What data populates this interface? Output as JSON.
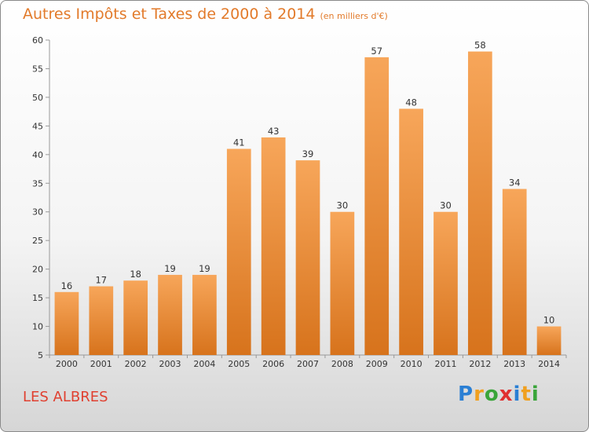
{
  "header": {
    "title": "Autres Impôts et Taxes de 2000 à 2014",
    "unit": "(en milliers d'€)"
  },
  "footer": {
    "commune": "LES ALBRES"
  },
  "logo": {
    "text": "Proxiti",
    "letters": [
      {
        "char": "P",
        "color": "#2a7fd4"
      },
      {
        "char": "r",
        "color": "#f0a020"
      },
      {
        "char": "o",
        "color": "#3aa53a"
      },
      {
        "char": "x",
        "color": "#e03030"
      },
      {
        "char": "i",
        "color": "#2a7fd4"
      },
      {
        "char": "t",
        "color": "#f0a020"
      },
      {
        "char": "i",
        "color": "#3aa53a"
      }
    ]
  },
  "chart_data": {
    "type": "bar",
    "title": "Autres Impôts et Taxes de 2000 à 2014",
    "subtitle": "(en milliers d'€)",
    "categories": [
      "2000",
      "2001",
      "2002",
      "2003",
      "2004",
      "2005",
      "2006",
      "2007",
      "2008",
      "2009",
      "2010",
      "2011",
      "2012",
      "2013",
      "2014"
    ],
    "values": [
      16,
      17,
      18,
      19,
      19,
      41,
      43,
      39,
      30,
      57,
      48,
      30,
      58,
      34,
      10
    ],
    "ylim": [
      5,
      60
    ],
    "yticks": [
      5,
      10,
      15,
      20,
      25,
      30,
      35,
      40,
      45,
      50,
      55,
      60
    ],
    "grid": false,
    "legend": "none",
    "bar_color": "#f0923a"
  }
}
